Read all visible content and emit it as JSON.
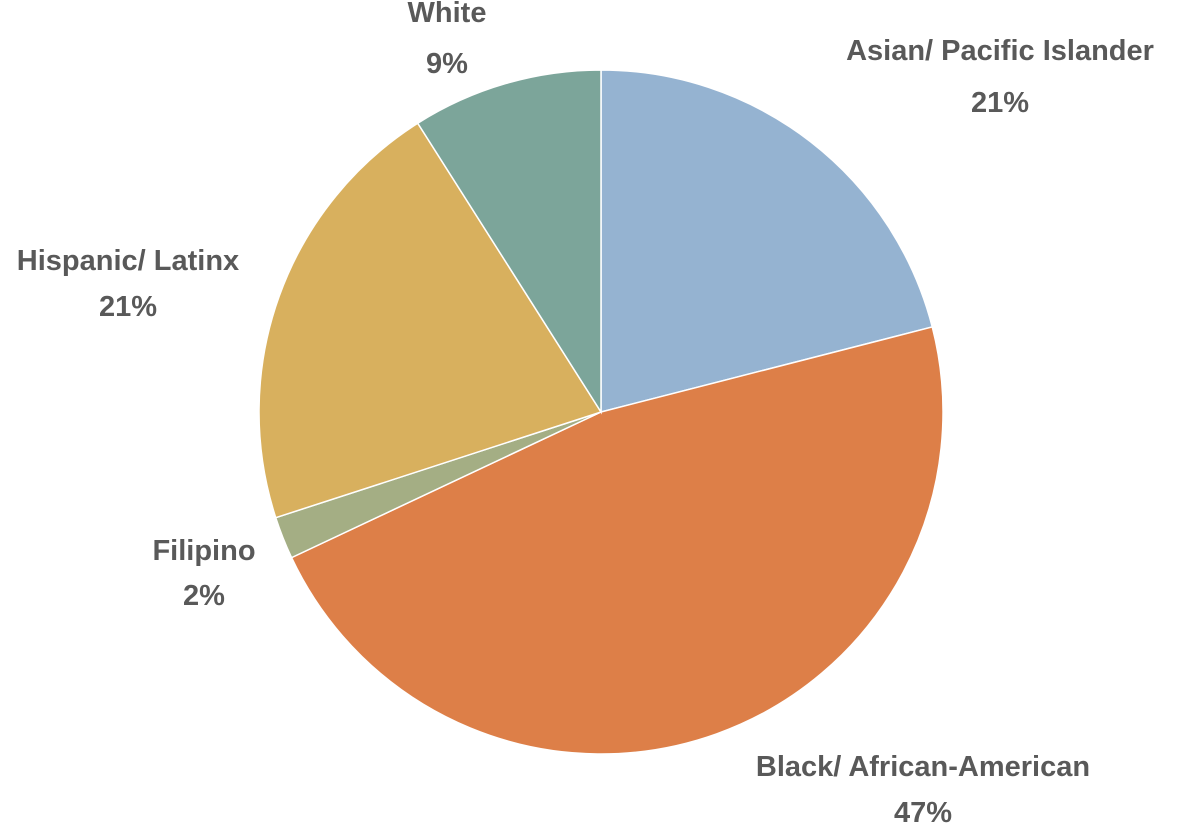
{
  "chart_data": {
    "type": "pie",
    "title": "",
    "start_angle_deg": 0,
    "direction": "clockwise",
    "slices": [
      {
        "name": "Asian/ Pacific Islander",
        "value": 21,
        "label": "21%",
        "color": "#95B3D1"
      },
      {
        "name": "Black/ African-American",
        "value": 47,
        "label": "47%",
        "color": "#DD7F48"
      },
      {
        "name": "Filipino",
        "value": 2,
        "label": "2%",
        "color": "#A4AE84"
      },
      {
        "name": "Hispanic/ Latinx",
        "value": 21,
        "label": "21%",
        "color": "#D8B05E"
      },
      {
        "name": "White",
        "value": 9,
        "label": "9%",
        "color": "#7CA59A"
      }
    ],
    "legend": "none",
    "data_labels": "outside, category name and percentage"
  }
}
